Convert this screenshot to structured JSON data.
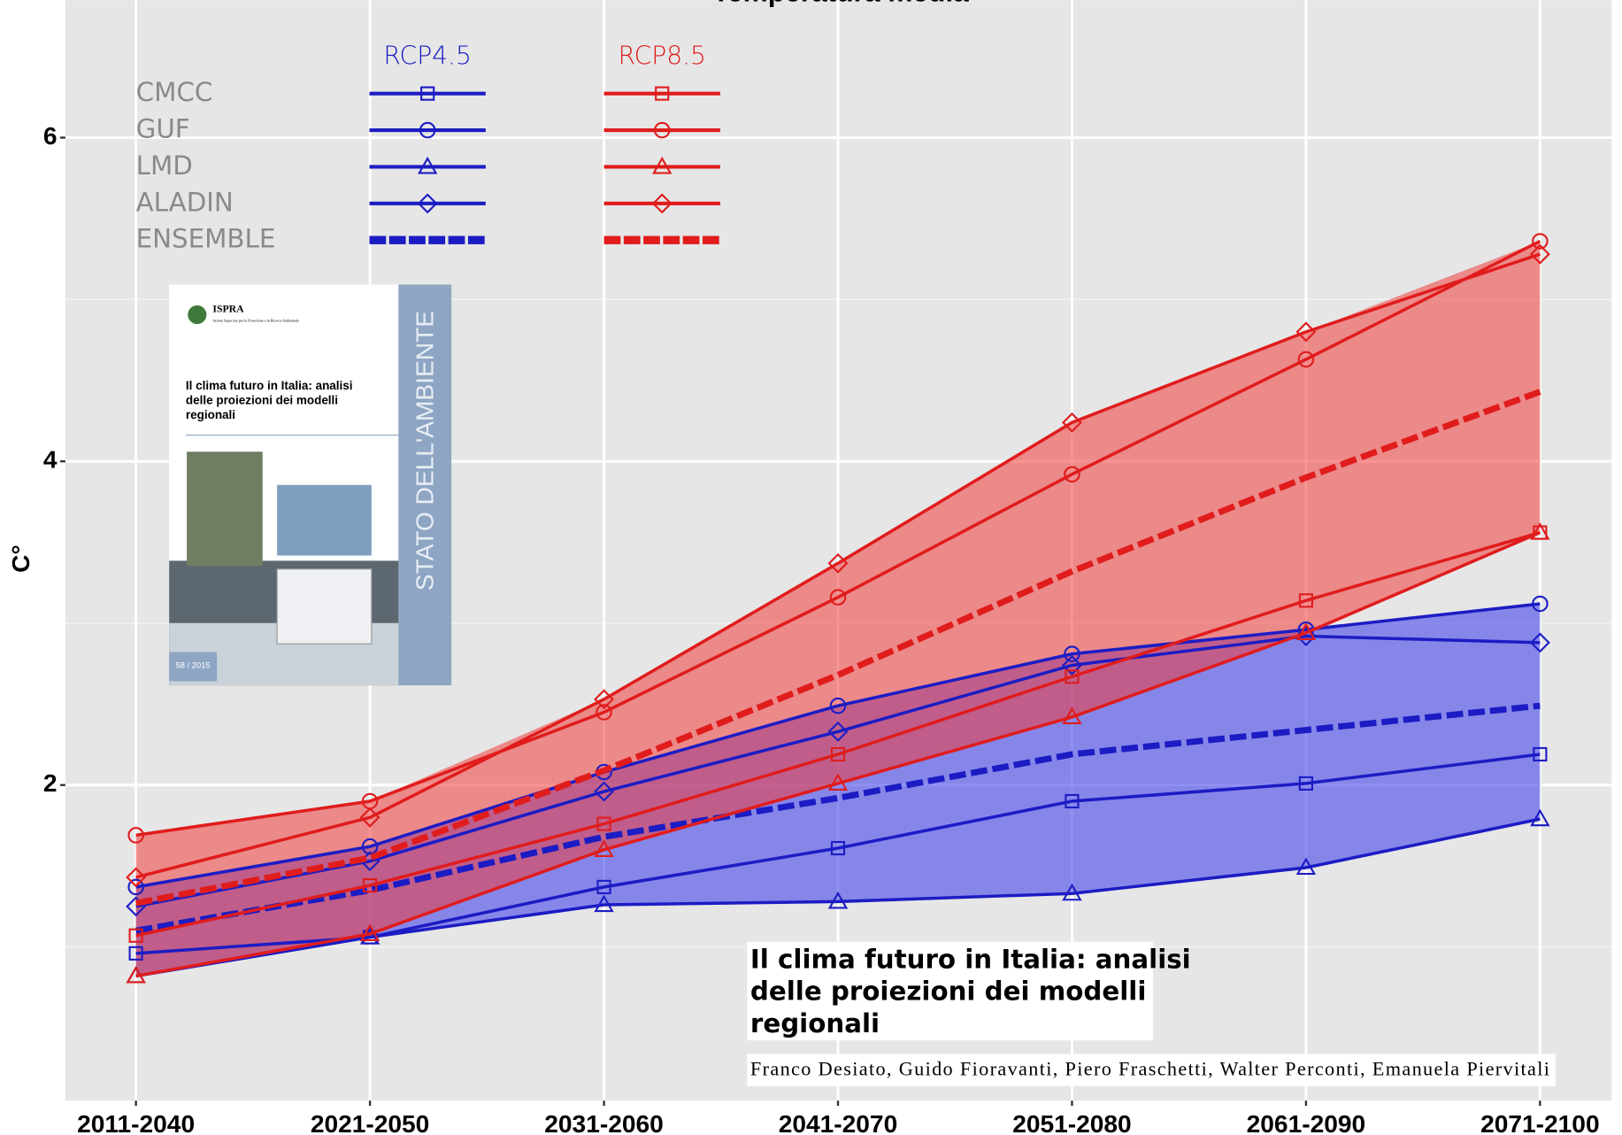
{
  "chart_data": {
    "type": "line",
    "title": "Temperatura media",
    "y_label": "C°",
    "categories": [
      "2011-2040",
      "2021-2050",
      "2031-2060",
      "2041-2070",
      "2051-2080",
      "2061-2090",
      "2071-2100"
    ],
    "ylim": [
      0.05,
      6.85
    ],
    "yticks": [
      2,
      4,
      6
    ],
    "grid": true,
    "models": [
      {
        "name": "CMCC",
        "marker": "square"
      },
      {
        "name": "GUF",
        "marker": "circle"
      },
      {
        "name": "LMD",
        "marker": "triangle"
      },
      {
        "name": "ALADIN",
        "marker": "diamond"
      },
      {
        "name": "ENSEMBLE",
        "dashed": true
      }
    ],
    "scenarios": [
      {
        "name": "RCP4.5",
        "color": "#1c1cc4",
        "band_color": "rgba(70,70,235,0.6)",
        "models": [
          {
            "values": [
              0.96,
              1.06,
              1.37,
              1.61,
              1.9,
              2.01,
              2.19
            ]
          },
          {
            "values": [
              1.37,
              1.62,
              2.08,
              2.49,
              2.81,
              2.96,
              3.12
            ]
          },
          {
            "values": [
              0.82,
              1.06,
              1.26,
              1.28,
              1.33,
              1.49,
              1.79
            ]
          },
          {
            "values": [
              1.25,
              1.53,
              1.96,
              2.33,
              2.74,
              2.92,
              2.88
            ]
          },
          {
            "values": [
              1.1,
              1.35,
              1.68,
              1.92,
              2.19,
              2.34,
              2.49
            ]
          }
        ]
      },
      {
        "name": "RCP8.5",
        "color": "#e01c1c",
        "band_color": "rgba(240,60,60,0.55)",
        "models": [
          {
            "values": [
              1.07,
              1.38,
              1.76,
              2.19,
              2.67,
              3.14,
              3.56
            ]
          },
          {
            "values": [
              1.69,
              1.9,
              2.45,
              3.16,
              3.92,
              4.63,
              5.36
            ]
          },
          {
            "values": [
              0.82,
              1.08,
              1.6,
              2.01,
              2.42,
              2.94,
              3.56
            ]
          },
          {
            "values": [
              1.43,
              1.8,
              2.53,
              3.37,
              4.24,
              4.8,
              5.28
            ]
          },
          {
            "values": [
              1.27,
              1.55,
              2.09,
              2.68,
              3.32,
              3.9,
              4.43
            ]
          }
        ]
      }
    ]
  },
  "inset": {
    "publisher": "ISPRA",
    "publisher_full": "Istituto Superiore per la Protezione e la Ricerca Ambientale",
    "title_lines": [
      "Il clima futuro in Italia: analisi",
      "delle proiezioni dei modelli",
      "regionali"
    ],
    "series_name": "STATO DELL'AMBIENTE",
    "number": "58 / 2015"
  },
  "caption": {
    "title_lines": [
      "Il clima futuro in Italia: analisi",
      "delle proiezioni dei modelli",
      "regionali"
    ],
    "authors": "Franco Desiato, Guido Fioravanti, Piero Fraschetti, Walter Perconti, Emanuela Piervitali"
  }
}
